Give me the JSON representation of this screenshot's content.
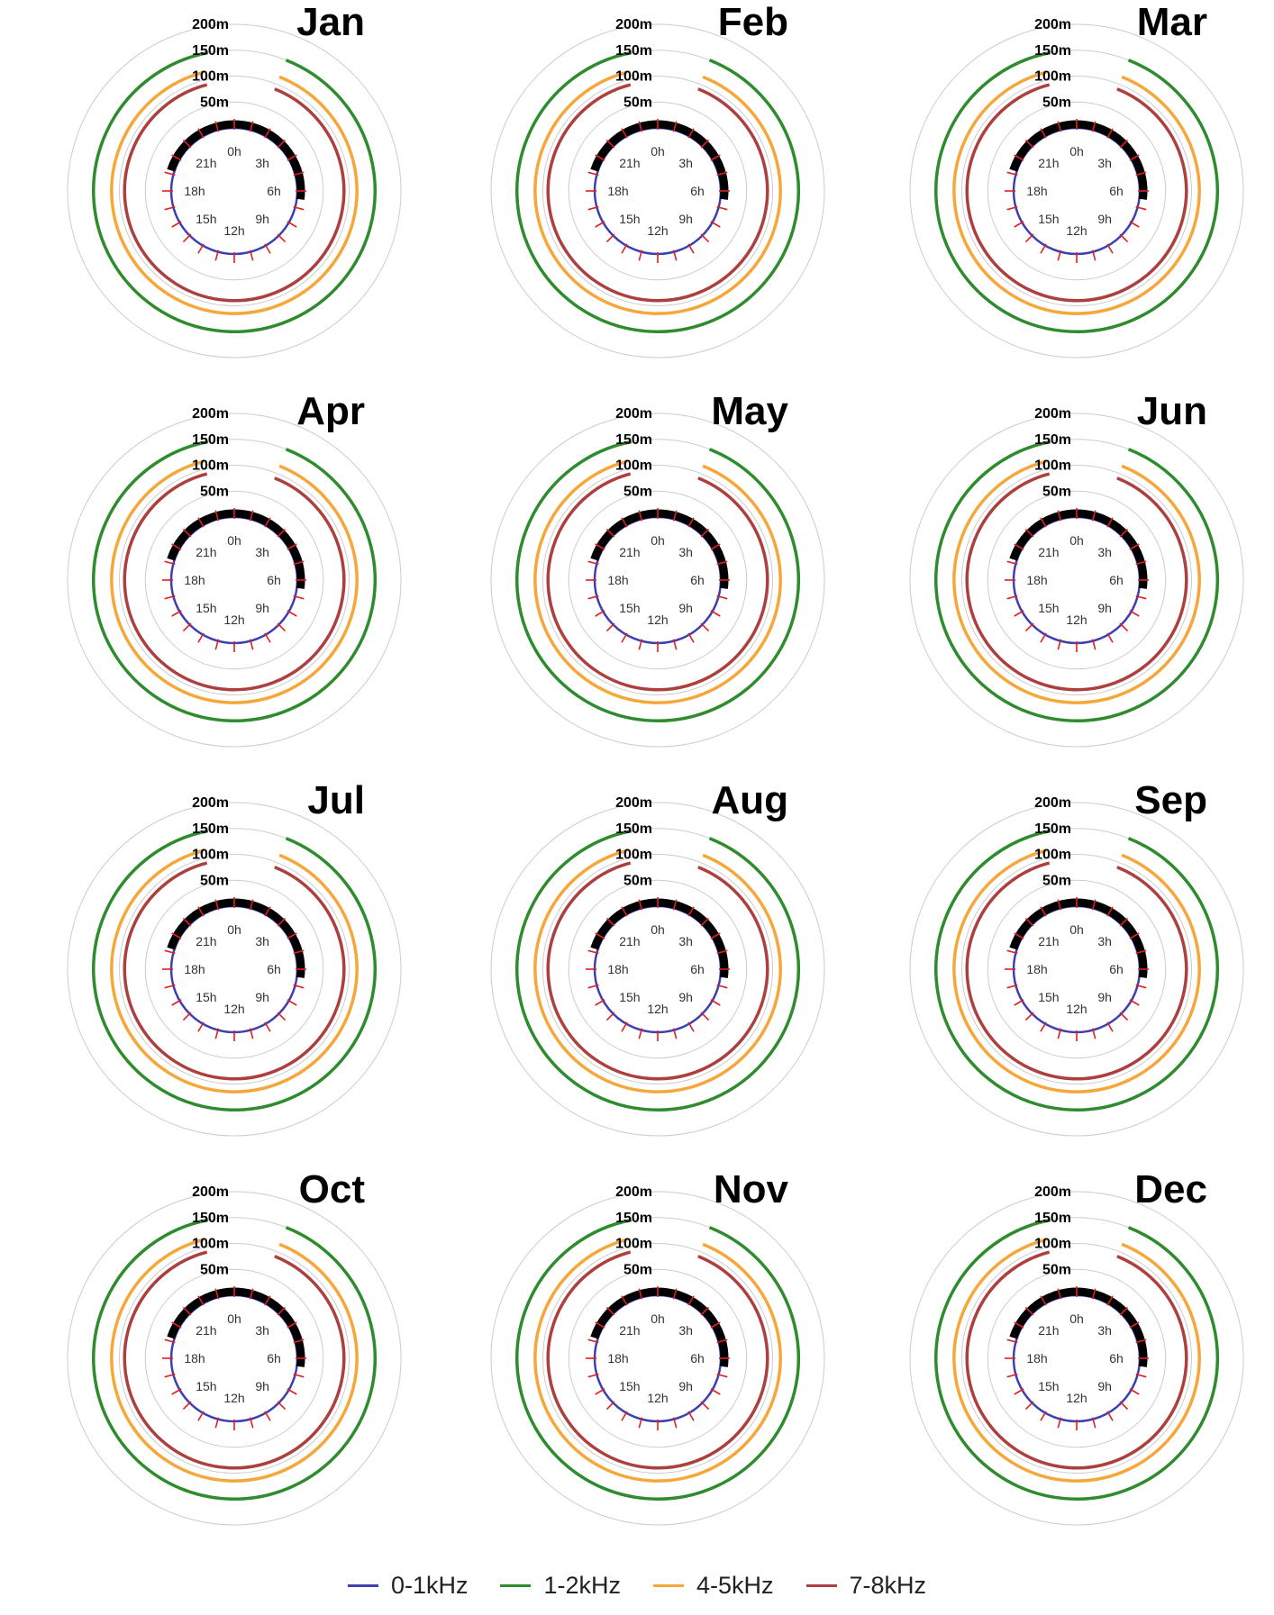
{
  "chart_data": {
    "type": "polar",
    "panels": [
      {
        "title": "Jan",
        "arcs": {
          "0-1kHz": [
            0.93,
            1.0
          ],
          "1-2kHz": [
            0.06,
            0.97
          ],
          "4-5kHz": [
            0.06,
            0.96
          ],
          "7-8kHz": [
            0.06,
            0.96
          ]
        }
      },
      {
        "title": "Feb",
        "arcs": {
          "0-1kHz": [
            0.93,
            1.0
          ],
          "1-2kHz": [
            0.06,
            0.97
          ],
          "4-5kHz": [
            0.06,
            0.96
          ],
          "7-8kHz": [
            0.06,
            0.96
          ]
        }
      },
      {
        "title": "Mar",
        "arcs": {
          "0-1kHz": [
            0.93,
            1.0
          ],
          "1-2kHz": [
            0.06,
            0.97
          ],
          "4-5kHz": [
            0.06,
            0.96
          ],
          "7-8kHz": [
            0.06,
            0.96
          ]
        }
      },
      {
        "title": "Apr",
        "arcs": {
          "0-1kHz": [
            0.93,
            1.0
          ],
          "1-2kHz": [
            0.06,
            0.97
          ],
          "4-5kHz": [
            0.06,
            0.96
          ],
          "7-8kHz": [
            0.06,
            0.96
          ]
        }
      },
      {
        "title": "May",
        "arcs": {
          "0-1kHz": [
            0.93,
            1.0
          ],
          "1-2kHz": [
            0.06,
            0.97
          ],
          "4-5kHz": [
            0.06,
            0.96
          ],
          "7-8kHz": [
            0.06,
            0.96
          ]
        }
      },
      {
        "title": "Jun",
        "arcs": {
          "0-1kHz": [
            0.93,
            1.0
          ],
          "1-2kHz": [
            0.06,
            0.97
          ],
          "4-5kHz": [
            0.06,
            0.96
          ],
          "7-8kHz": [
            0.06,
            0.96
          ]
        }
      },
      {
        "title": "Jul",
        "arcs": {
          "0-1kHz": [
            0.93,
            1.0
          ],
          "1-2kHz": [
            0.06,
            0.97
          ],
          "4-5kHz": [
            0.06,
            0.96
          ],
          "7-8kHz": [
            0.06,
            0.96
          ]
        }
      },
      {
        "title": "Aug",
        "arcs": {
          "0-1kHz": [
            0.93,
            1.0
          ],
          "1-2kHz": [
            0.06,
            0.97
          ],
          "4-5kHz": [
            0.06,
            0.96
          ],
          "7-8kHz": [
            0.06,
            0.96
          ]
        }
      },
      {
        "title": "Sep",
        "arcs": {
          "0-1kHz": [
            0.93,
            1.0
          ],
          "1-2kHz": [
            0.06,
            0.97
          ],
          "4-5kHz": [
            0.06,
            0.96
          ],
          "7-8kHz": [
            0.06,
            0.96
          ]
        }
      },
      {
        "title": "Oct",
        "arcs": {
          "0-1kHz": [
            0.93,
            1.0
          ],
          "1-2kHz": [
            0.06,
            0.97
          ],
          "4-5kHz": [
            0.06,
            0.96
          ],
          "7-8kHz": [
            0.06,
            0.96
          ]
        }
      },
      {
        "title": "Nov",
        "arcs": {
          "0-1kHz": [
            0.93,
            1.0
          ],
          "1-2kHz": [
            0.06,
            0.97
          ],
          "4-5kHz": [
            0.06,
            0.96
          ],
          "7-8kHz": [
            0.06,
            0.96
          ]
        }
      },
      {
        "title": "Dec",
        "arcs": {
          "0-1kHz": [
            0.93,
            1.0
          ],
          "1-2kHz": [
            0.06,
            0.97
          ],
          "4-5kHz": [
            0.06,
            0.96
          ],
          "7-8kHz": [
            0.06,
            0.96
          ]
        }
      }
    ],
    "radial_ticks": [
      "50m",
      "100m",
      "150m",
      "200m"
    ],
    "radial_tick_values": [
      50,
      100,
      150,
      200
    ],
    "hour_labels": [
      "0h",
      "3h",
      "6h",
      "9h",
      "12h",
      "15h",
      "18h",
      "21h"
    ],
    "series": [
      {
        "name": "0-1kHz",
        "color": "#3f3fb0",
        "radius": 25
      },
      {
        "name": "1-2kHz",
        "color": "#2e8b2e",
        "radius": 150
      },
      {
        "name": "4-5kHz",
        "color": "#f5a73a",
        "radius": 115
      },
      {
        "name": "7-8kHz",
        "color": "#ad3f3f",
        "radius": 90
      }
    ],
    "legend": {
      "placement": "bottom"
    },
    "colors": {
      "grid": "#cccccc",
      "tick_red": "#e02020",
      "black_bar": "#000000"
    }
  }
}
